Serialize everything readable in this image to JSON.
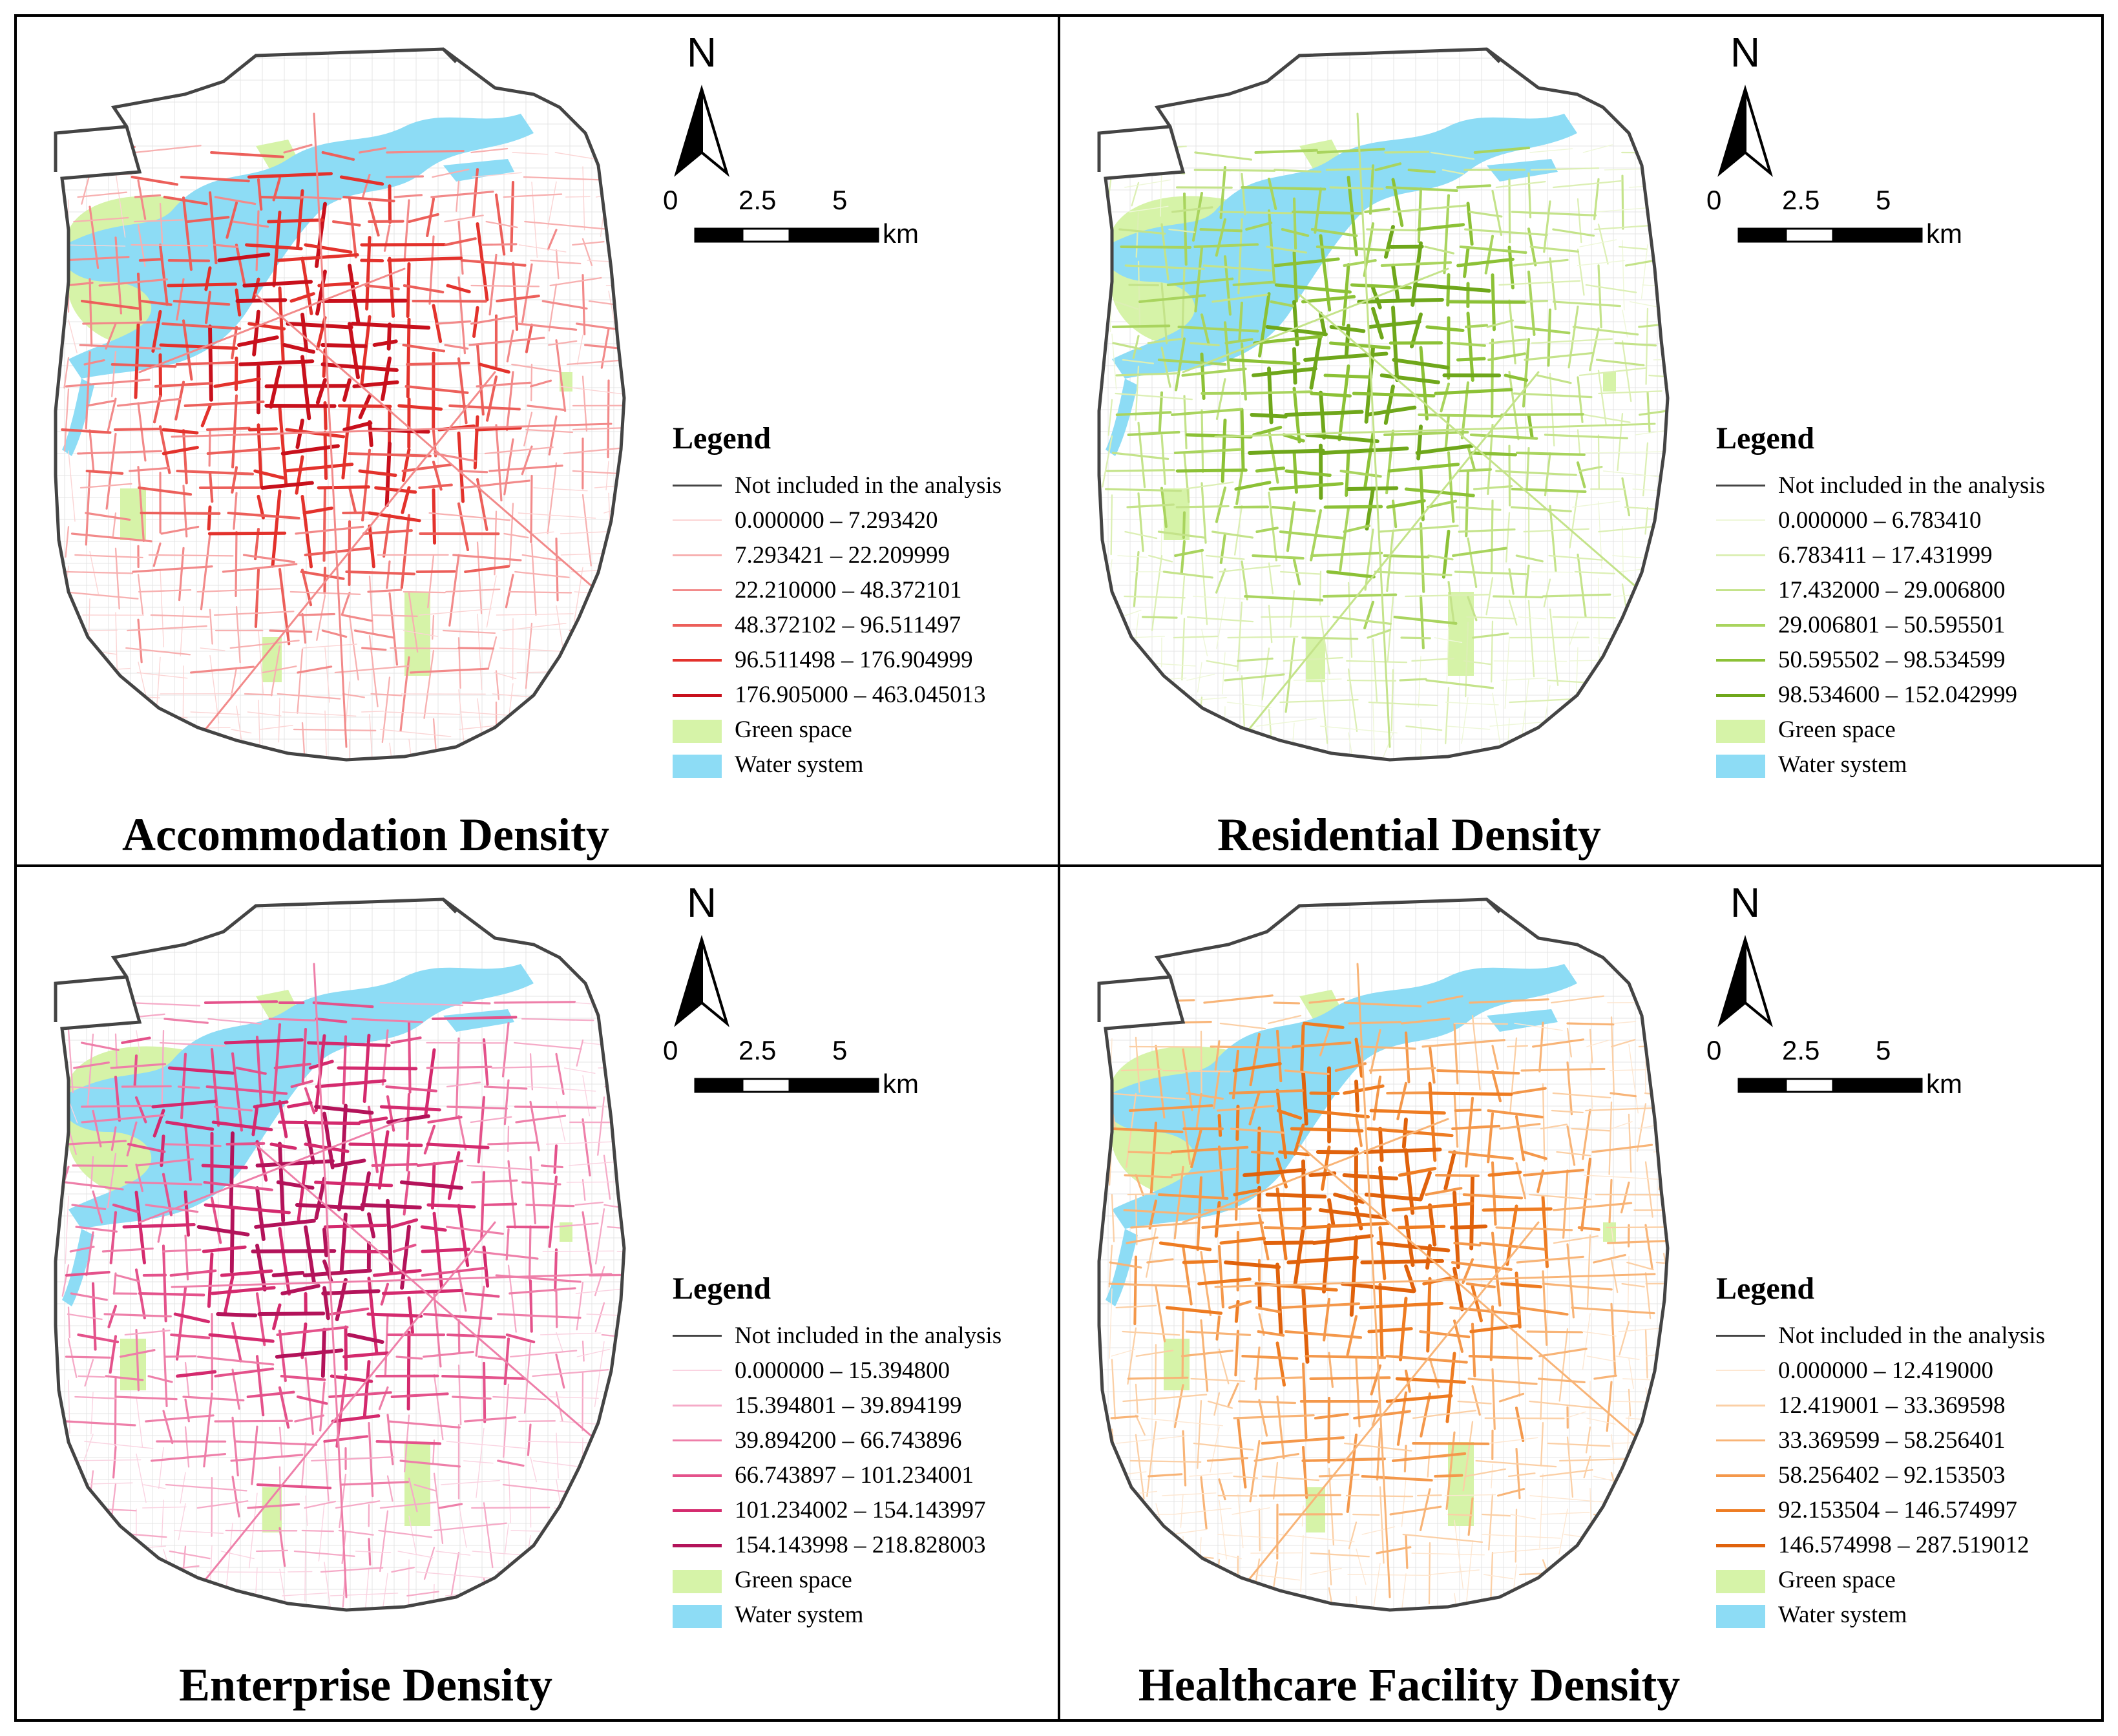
{
  "figure": {
    "panels": [
      {
        "title": "Accommodation Density",
        "legend": {
          "title": "Legend",
          "not_included": "Not included in the analysis",
          "classes": [
            {
              "label": "0.000000 – 7.293420",
              "color": "#fbd4d4"
            },
            {
              "label": "7.293421 – 22.209999",
              "color": "#f7b0b0"
            },
            {
              "label": "22.210000 – 48.372101",
              "color": "#f28a8a"
            },
            {
              "label": "48.372102 – 96.511497",
              "color": "#ec5f5a"
            },
            {
              "label": "96.511498 – 176.904999",
              "color": "#e3322c"
            },
            {
              "label": "176.905000 – 463.045013",
              "color": "#c8101c"
            }
          ],
          "green_space": "Green space",
          "water_system": "Water system"
        }
      },
      {
        "title": "Residential Density",
        "legend": {
          "title": "Legend",
          "not_included": "Not included in the analysis",
          "classes": [
            {
              "label": "0.000000 – 6.783410",
              "color": "#eef7d8"
            },
            {
              "label": "6.783411 – 17.431999",
              "color": "#dcefb4"
            },
            {
              "label": "17.432000 – 29.006800",
              "color": "#c4e38a"
            },
            {
              "label": "29.006801 – 50.595501",
              "color": "#a9d45e"
            },
            {
              "label": "50.595502 – 98.534599",
              "color": "#8cc136"
            },
            {
              "label": "98.534600 – 152.042999",
              "color": "#6fa71b"
            }
          ],
          "green_space": "Green space",
          "water_system": "Water system"
        }
      },
      {
        "title": "Enterprise Density",
        "legend": {
          "title": "Legend",
          "not_included": "Not included in the analysis",
          "classes": [
            {
              "label": "0.000000 – 15.394800",
              "color": "#fad3e1"
            },
            {
              "label": "15.394801 – 39.894199",
              "color": "#f5aac7"
            },
            {
              "label": "39.894200 – 66.743896",
              "color": "#ee7fa9"
            },
            {
              "label": "66.743897 – 101.234001",
              "color": "#e4528b"
            },
            {
              "label": "101.234002 – 154.143997",
              "color": "#d42a6e"
            },
            {
              "label": "154.143998 – 218.828003",
              "color": "#b3135a"
            }
          ],
          "green_space": "Green space",
          "water_system": "Water system"
        }
      },
      {
        "title": "Healthcare Facility Density",
        "legend": {
          "title": "Legend",
          "not_included": "Not included in the analysis",
          "classes": [
            {
              "label": "0.000000 – 12.419000",
              "color": "#fde7d2"
            },
            {
              "label": "12.419001 – 33.369598",
              "color": "#fbcfa5"
            },
            {
              "label": "33.369599 – 58.256401",
              "color": "#f8b477"
            },
            {
              "label": "58.256402 – 92.153503",
              "color": "#f4984b"
            },
            {
              "label": "92.153504 – 146.574997",
              "color": "#ee7c22"
            },
            {
              "label": "146.574998 – 287.519012",
              "color": "#e0620c"
            }
          ],
          "green_space": "Green space",
          "water_system": "Water system"
        }
      }
    ],
    "north_arrow": "N",
    "scale_bar": {
      "ticks": [
        "0",
        "2.5",
        "5"
      ],
      "unit": "km"
    },
    "colors": {
      "not_included": "#444444",
      "green_space": "#d6f3a8",
      "water": "#8ddcf5",
      "grid": "#e4e4e4"
    }
  }
}
